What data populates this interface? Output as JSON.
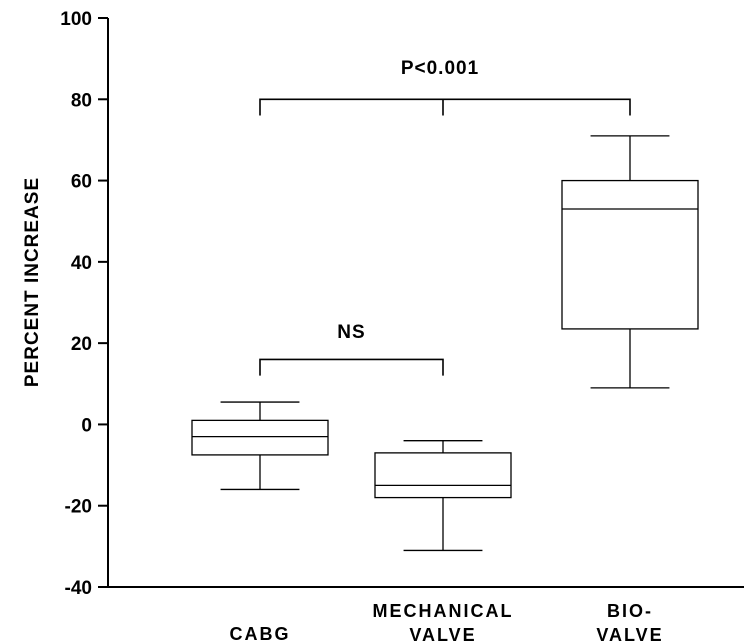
{
  "chart_data": {
    "type": "box",
    "ylabel": "PERCENT INCREASE",
    "ylim": [
      -40,
      100
    ],
    "yticks": [
      100,
      80,
      60,
      40,
      20,
      0,
      -20,
      -40
    ],
    "groups": [
      {
        "label_lines": [
          "CABG"
        ],
        "min": -16,
        "q1": -7.5,
        "median": -3,
        "q3": 1,
        "max": 5.5
      },
      {
        "label_lines": [
          "MECHANICAL",
          "VALVE"
        ],
        "min": -31,
        "q1": -18,
        "median": -15,
        "q3": -7,
        "max": -4
      },
      {
        "label_lines": [
          "BIO-",
          "VALVE"
        ],
        "min": 9,
        "q1": 23.5,
        "median": 53,
        "q3": 60,
        "max": 71
      }
    ],
    "annotations": [
      {
        "text": "P<0.001",
        "from_group": 0,
        "to_group": 2,
        "mid_group": 1,
        "bracket_y": 80,
        "drop_to": 76,
        "text_y": 88
      },
      {
        "text": "NS",
        "from_group": 0,
        "to_group": 1,
        "bracket_y": 16,
        "drop_to": 12,
        "text_y": 23
      }
    ]
  }
}
